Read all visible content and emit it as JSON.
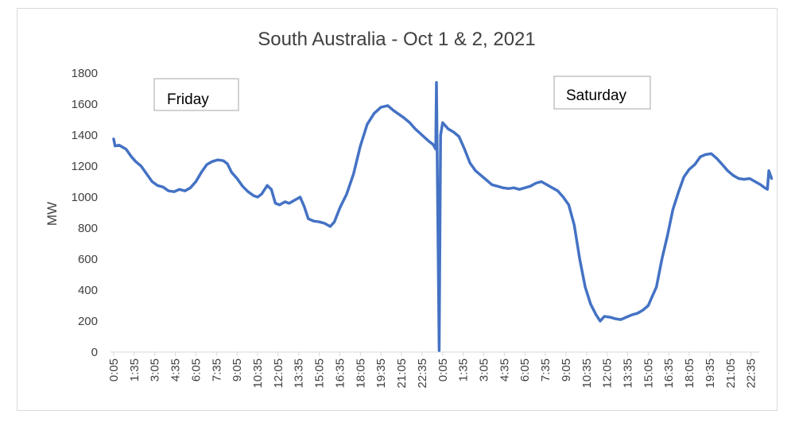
{
  "chart_data": {
    "type": "line",
    "title": "South Australia - Oct 1 & 2, 2021",
    "xlabel": "",
    "ylabel": "MW",
    "ylim": [
      0,
      1800
    ],
    "yticks": [
      0,
      200,
      400,
      600,
      800,
      1000,
      1200,
      1400,
      1600,
      1800
    ],
    "grid": false,
    "legend": "none",
    "x_tick_labels": [
      "0:05",
      "1:35",
      "3:05",
      "4:35",
      "6:05",
      "7:35",
      "9:05",
      "10:35",
      "12:05",
      "13:35",
      "15:05",
      "16:35",
      "18:05",
      "19:35",
      "21:05",
      "22:35",
      "0:05",
      "1:35",
      "3:05",
      "4:35",
      "6:05",
      "7:35",
      "9:05",
      "10:35",
      "12:05",
      "13:35",
      "15:05",
      "16:35",
      "18:05",
      "19:35",
      "21:05",
      "22:35"
    ],
    "annotations": [
      "Friday",
      "Saturday"
    ],
    "series": [
      {
        "color": "#4472c4",
        "points": [
          [
            0,
            1375
          ],
          [
            0.1,
            1330
          ],
          [
            0.4,
            1335
          ],
          [
            0.9,
            1310
          ],
          [
            1.3,
            1260
          ],
          [
            1.6,
            1230
          ],
          [
            2.0,
            1200
          ],
          [
            2.4,
            1150
          ],
          [
            2.8,
            1100
          ],
          [
            3.2,
            1075
          ],
          [
            3.6,
            1065
          ],
          [
            4.0,
            1040
          ],
          [
            4.4,
            1035
          ],
          [
            4.8,
            1050
          ],
          [
            5.2,
            1040
          ],
          [
            5.6,
            1060
          ],
          [
            6.0,
            1100
          ],
          [
            6.4,
            1160
          ],
          [
            6.8,
            1210
          ],
          [
            7.2,
            1230
          ],
          [
            7.6,
            1240
          ],
          [
            8.0,
            1235
          ],
          [
            8.3,
            1215
          ],
          [
            8.6,
            1160
          ],
          [
            9.0,
            1120
          ],
          [
            9.4,
            1070
          ],
          [
            9.8,
            1035
          ],
          [
            10.2,
            1010
          ],
          [
            10.5,
            1000
          ],
          [
            10.8,
            1020
          ],
          [
            11.2,
            1075
          ],
          [
            11.5,
            1050
          ],
          [
            11.8,
            960
          ],
          [
            12.1,
            950
          ],
          [
            12.5,
            970
          ],
          [
            12.8,
            960
          ],
          [
            13.2,
            980
          ],
          [
            13.6,
            1000
          ],
          [
            13.9,
            940
          ],
          [
            14.2,
            860
          ],
          [
            14.6,
            845
          ],
          [
            15.0,
            840
          ],
          [
            15.4,
            830
          ],
          [
            15.8,
            810
          ],
          [
            16.1,
            840
          ],
          [
            16.5,
            930
          ],
          [
            17.0,
            1020
          ],
          [
            17.5,
            1150
          ],
          [
            18.0,
            1330
          ],
          [
            18.5,
            1470
          ],
          [
            19.0,
            1540
          ],
          [
            19.5,
            1580
          ],
          [
            20.0,
            1590
          ],
          [
            20.4,
            1560
          ],
          [
            20.8,
            1535
          ],
          [
            21.2,
            1510
          ],
          [
            21.6,
            1480
          ],
          [
            22.0,
            1440
          ],
          [
            22.5,
            1400
          ],
          [
            23.0,
            1360
          ],
          [
            23.3,
            1340
          ],
          [
            23.5,
            1310
          ],
          [
            23.55,
            1740
          ],
          [
            23.75,
            10
          ],
          [
            23.85,
            1400
          ],
          [
            24.0,
            1480
          ],
          [
            24.4,
            1440
          ],
          [
            24.8,
            1420
          ],
          [
            25.2,
            1390
          ],
          [
            25.6,
            1310
          ],
          [
            26.0,
            1220
          ],
          [
            26.4,
            1170
          ],
          [
            26.8,
            1140
          ],
          [
            27.2,
            1110
          ],
          [
            27.6,
            1080
          ],
          [
            28.0,
            1070
          ],
          [
            28.4,
            1060
          ],
          [
            28.8,
            1055
          ],
          [
            29.2,
            1060
          ],
          [
            29.6,
            1050
          ],
          [
            30.0,
            1060
          ],
          [
            30.4,
            1070
          ],
          [
            30.8,
            1090
          ],
          [
            31.2,
            1100
          ],
          [
            31.6,
            1080
          ],
          [
            32.0,
            1060
          ],
          [
            32.4,
            1040
          ],
          [
            32.8,
            1000
          ],
          [
            33.2,
            950
          ],
          [
            33.6,
            820
          ],
          [
            34.0,
            600
          ],
          [
            34.4,
            420
          ],
          [
            34.8,
            310
          ],
          [
            35.2,
            240
          ],
          [
            35.5,
            200
          ],
          [
            35.8,
            230
          ],
          [
            36.2,
            225
          ],
          [
            36.6,
            215
          ],
          [
            37.0,
            210
          ],
          [
            37.4,
            225
          ],
          [
            37.8,
            240
          ],
          [
            38.2,
            250
          ],
          [
            38.6,
            270
          ],
          [
            39.0,
            300
          ],
          [
            39.3,
            360
          ],
          [
            39.6,
            420
          ],
          [
            40.0,
            600
          ],
          [
            40.4,
            750
          ],
          [
            40.8,
            920
          ],
          [
            41.2,
            1030
          ],
          [
            41.6,
            1130
          ],
          [
            42.0,
            1180
          ],
          [
            42.4,
            1210
          ],
          [
            42.8,
            1260
          ],
          [
            43.2,
            1275
          ],
          [
            43.6,
            1280
          ],
          [
            44.0,
            1250
          ],
          [
            44.4,
            1210
          ],
          [
            44.8,
            1170
          ],
          [
            45.2,
            1140
          ],
          [
            45.6,
            1120
          ],
          [
            46.0,
            1115
          ],
          [
            46.4,
            1120
          ],
          [
            46.8,
            1100
          ],
          [
            47.2,
            1080
          ],
          [
            47.5,
            1060
          ],
          [
            47.7,
            1050
          ],
          [
            47.8,
            1170
          ],
          [
            48.0,
            1120
          ]
        ]
      }
    ]
  }
}
